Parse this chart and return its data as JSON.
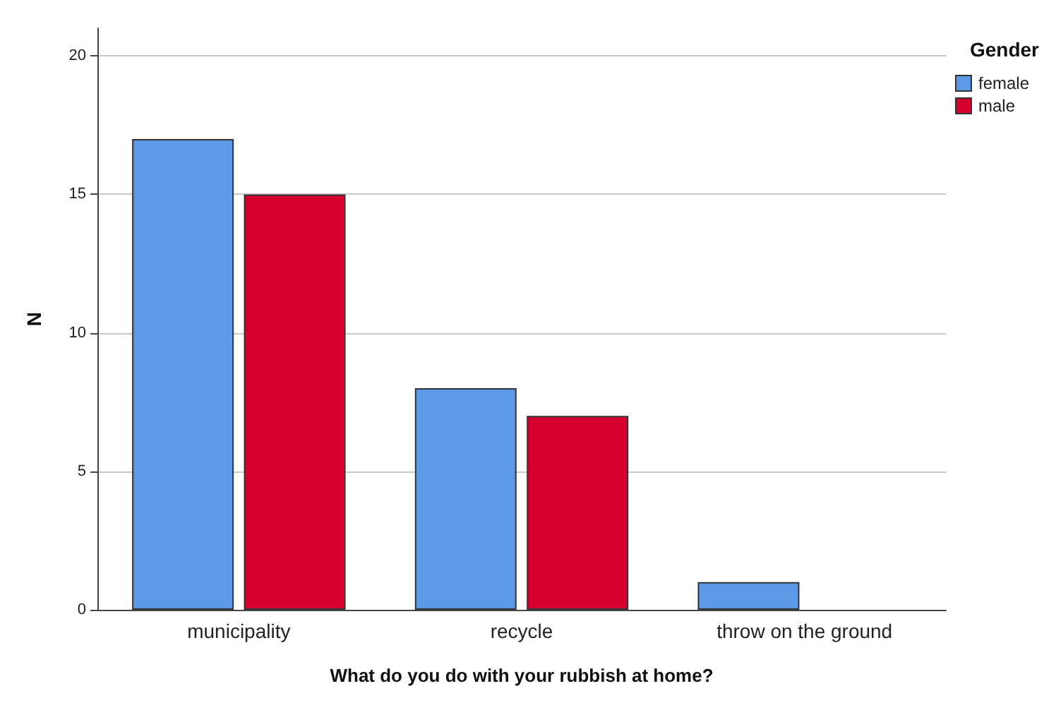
{
  "chart_data": {
    "type": "bar",
    "xlabel": "What do you do with your rubbish at home?",
    "ylabel": "N",
    "legend_title": "Gender",
    "categories": [
      "municipality",
      "recycle",
      "throw on the ground"
    ],
    "series": [
      {
        "name": "female",
        "color": "#5b98e6",
        "values": [
          17,
          8,
          1
        ]
      },
      {
        "name": "male",
        "color": "#d5002e",
        "values": [
          15,
          7,
          null
        ]
      }
    ],
    "ylim": [
      0,
      21
    ],
    "yticks": [
      0,
      5,
      10,
      15,
      20
    ],
    "grid": "y",
    "legend": "top right"
  }
}
